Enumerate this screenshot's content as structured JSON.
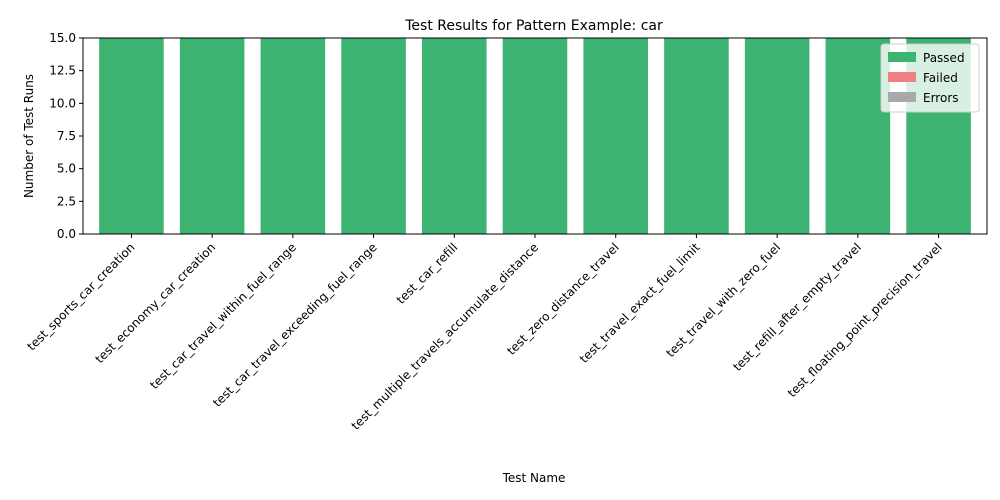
{
  "chart_data": {
    "type": "bar",
    "stacked": true,
    "title": "Test Results for Pattern Example: car",
    "xlabel": "Test Name",
    "ylabel": "Number of Test Runs",
    "ylim": [
      0,
      15
    ],
    "yticks": [
      "0.0",
      "2.5",
      "5.0",
      "7.5",
      "10.0",
      "12.5",
      "15.0"
    ],
    "categories": [
      "test_sports_car_creation",
      "test_economy_car_creation",
      "test_car_travel_within_fuel_range",
      "test_car_travel_exceeding_fuel_range",
      "test_car_refill",
      "test_multiple_travels_accumulate_distance",
      "test_zero_distance_travel",
      "test_travel_exact_fuel_limit",
      "test_travel_with_zero_fuel",
      "test_refill_after_empty_travel",
      "test_floating_point_precision_travel"
    ],
    "series": [
      {
        "name": "Passed",
        "color": "#3cb371",
        "values": [
          15,
          15,
          15,
          15,
          15,
          15,
          15,
          15,
          15,
          15,
          15
        ]
      },
      {
        "name": "Failed",
        "color": "#f08080",
        "values": [
          0,
          0,
          0,
          0,
          0,
          0,
          0,
          0,
          0,
          0,
          0
        ]
      },
      {
        "name": "Errors",
        "color": "#a9a9a9",
        "values": [
          0,
          0,
          0,
          0,
          0,
          0,
          0,
          0,
          0,
          0,
          0
        ]
      }
    ],
    "legend": "top-right",
    "grid": false
  }
}
